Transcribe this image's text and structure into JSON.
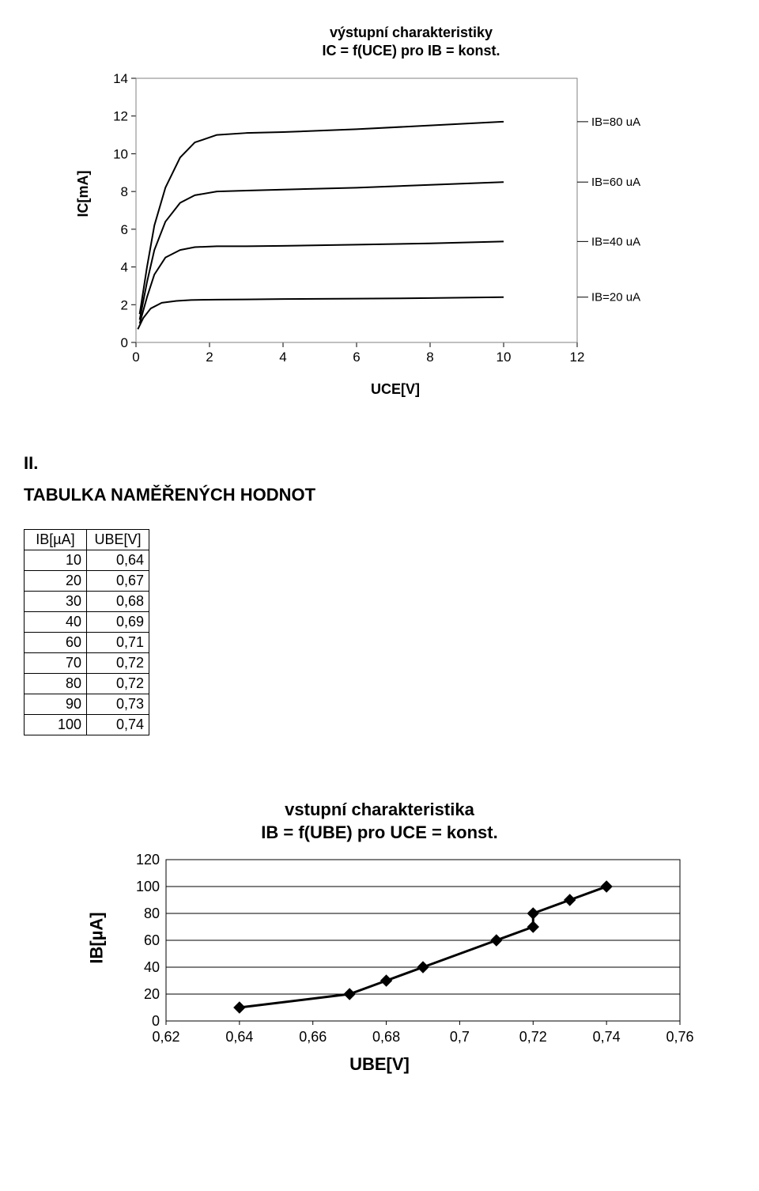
{
  "chart1": {
    "type": "line",
    "title_line1": "výstupní charakteristiky",
    "title_line2": "IC = f(UCE) pro IB = konst.",
    "title_fontsize": 18,
    "ylabel": "IC[mA]",
    "xlabel": "UCE[V]",
    "label_fontsize": 18,
    "xlim": [
      0,
      12
    ],
    "ylim": [
      0,
      14
    ],
    "xtick_step": 2,
    "ytick_step": 2,
    "background_color": "#ffffff",
    "plot_border_color": "#808080",
    "tick_color": "#000000",
    "tick_fontsize": 17,
    "line_color": "#000000",
    "line_width": 2,
    "grid": false,
    "series": [
      {
        "label": "IB=80 uA",
        "x": [
          0.1,
          0.3,
          0.5,
          0.8,
          1.2,
          1.6,
          2.2,
          3,
          4,
          6,
          8,
          10
        ],
        "y": [
          1.5,
          4.0,
          6.2,
          8.2,
          9.8,
          10.6,
          11.0,
          11.1,
          11.15,
          11.3,
          11.5,
          11.7
        ]
      },
      {
        "label": "IB=60 uA",
        "x": [
          0.1,
          0.3,
          0.5,
          0.8,
          1.2,
          1.6,
          2.2,
          3,
          4,
          6,
          8,
          10
        ],
        "y": [
          1.2,
          3.2,
          4.9,
          6.4,
          7.4,
          7.8,
          8.0,
          8.05,
          8.1,
          8.2,
          8.35,
          8.5
        ]
      },
      {
        "label": "IB=40 uA",
        "x": [
          0.1,
          0.3,
          0.5,
          0.8,
          1.2,
          1.6,
          2.2,
          3,
          4,
          6,
          8,
          10
        ],
        "y": [
          1.0,
          2.4,
          3.6,
          4.5,
          4.9,
          5.05,
          5.1,
          5.1,
          5.12,
          5.18,
          5.25,
          5.35
        ]
      },
      {
        "label": "IB=20 uA",
        "x": [
          0.05,
          0.2,
          0.4,
          0.7,
          1.1,
          1.5,
          2.2,
          3,
          4,
          6,
          8,
          10
        ],
        "y": [
          0.7,
          1.3,
          1.8,
          2.1,
          2.2,
          2.25,
          2.27,
          2.28,
          2.3,
          2.32,
          2.35,
          2.4
        ]
      }
    ],
    "series_label_color": "#000000",
    "series_label_fontsize": 15
  },
  "section2": {
    "roman": "II.",
    "header": "TABULKA NAMĚŘENÝCH HODNOT"
  },
  "table": {
    "columns": [
      "IB[µA]",
      "UBE[V]"
    ],
    "rows": [
      [
        "10",
        "0,64"
      ],
      [
        "20",
        "0,67"
      ],
      [
        "30",
        "0,68"
      ],
      [
        "40",
        "0,69"
      ],
      [
        "60",
        "0,71"
      ],
      [
        "70",
        "0,72"
      ],
      [
        "80",
        "0,72"
      ],
      [
        "90",
        "0,73"
      ],
      [
        "100",
        "0,74"
      ]
    ],
    "border_color": "#000000",
    "fontsize": 18
  },
  "chart2": {
    "type": "line-marker",
    "title_line1": "vstupní charakteristika",
    "title_line2": "IB = f(UBE) pro UCE = konst.",
    "title_fontsize": 22,
    "ylabel": "IB[µA]",
    "xlabel": "UBE[V]",
    "label_fontsize": 22,
    "xlim": [
      0.62,
      0.76
    ],
    "ylim": [
      0,
      120
    ],
    "xticks": [
      "0,62",
      "0,64",
      "0,66",
      "0,68",
      "0,7",
      "0,72",
      "0,74",
      "0,76"
    ],
    "xtick_values": [
      0.62,
      0.64,
      0.66,
      0.68,
      0.7,
      0.72,
      0.74,
      0.76
    ],
    "ytick_step": 20,
    "plot_bg_color": "#ffffff",
    "outer_bg_color": "#ffffff",
    "grid_color": "#000000",
    "grid_on": true,
    "line_color": "#000000",
    "line_width": 3,
    "marker_style": "diamond",
    "marker_size": 7,
    "marker_color": "#000000",
    "tick_fontsize": 18,
    "points_x": [
      0.64,
      0.67,
      0.68,
      0.69,
      0.71,
      0.72,
      0.72,
      0.73,
      0.74
    ],
    "points_y": [
      10,
      20,
      30,
      40,
      60,
      70,
      80,
      90,
      100
    ]
  }
}
